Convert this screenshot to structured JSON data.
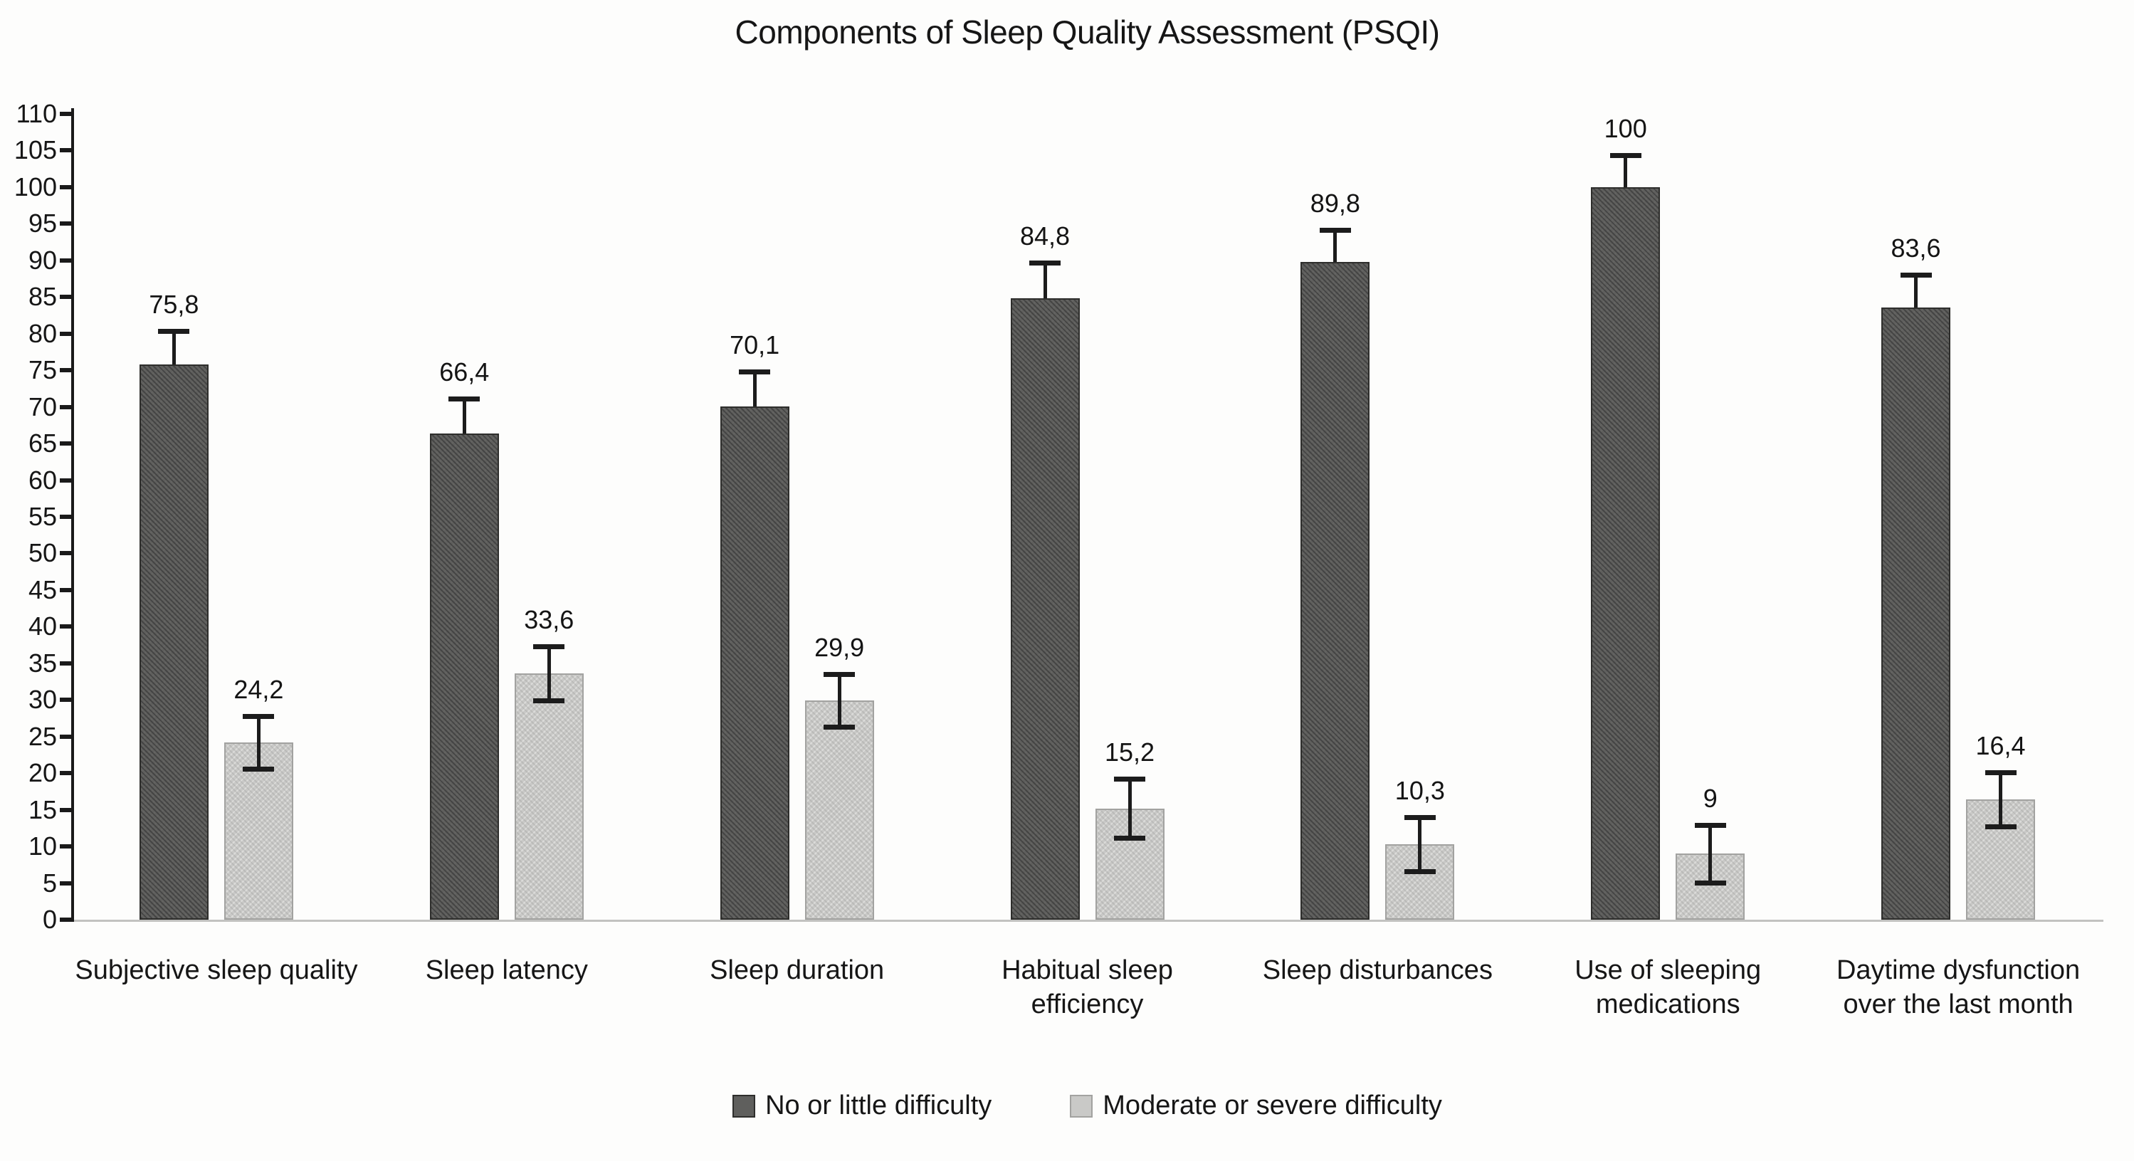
{
  "chart_data": {
    "type": "bar",
    "title": "Components of Sleep Quality Assessment (PSQI)",
    "categories": [
      "Subjective sleep quality",
      "Sleep latency",
      "Sleep duration",
      "Habitual sleep efficiency",
      "Sleep disturbances",
      "Use of sleeping medications",
      "Daytime dysfunction over the last month"
    ],
    "series": [
      {
        "name": "No or little difficulty",
        "values": [
          75.8,
          66.4,
          70.1,
          84.8,
          89.8,
          100,
          83.6
        ],
        "labels": [
          "75,8",
          "66,4",
          "70,1",
          "84,8",
          "89,8",
          "100",
          "83,6"
        ],
        "errors": [
          4.6,
          4.7,
          4.7,
          4.9,
          4.4,
          4.4,
          4.4
        ],
        "error_sides": "up",
        "color": "#5f5f5d",
        "border": "#2e2e2c"
      },
      {
        "name": "Moderate or severe difficulty",
        "values": [
          24.2,
          33.6,
          29.9,
          15.2,
          10.3,
          9,
          16.4
        ],
        "labels": [
          "24,2",
          "33,6",
          "29,9",
          "15,2",
          "10,3",
          "9",
          "16,4"
        ],
        "errors": [
          3.6,
          3.7,
          3.6,
          4.0,
          3.7,
          3.9,
          3.7
        ],
        "error_sides": "both",
        "color": "#c9c9c7",
        "border": "#a2a2a0"
      }
    ],
    "ylim": [
      0,
      110
    ],
    "ytick_step": 5,
    "yticks": [
      "0",
      "5",
      "10",
      "15",
      "20",
      "25",
      "30",
      "35",
      "40",
      "45",
      "50",
      "55",
      "60",
      "65",
      "70",
      "75",
      "80",
      "85",
      "90",
      "95",
      "100",
      "105",
      "110"
    ],
    "grid": false,
    "legend_position": "bottom",
    "axis_color": "#1a1a1a",
    "baseline_color": "#c2c2c0"
  }
}
